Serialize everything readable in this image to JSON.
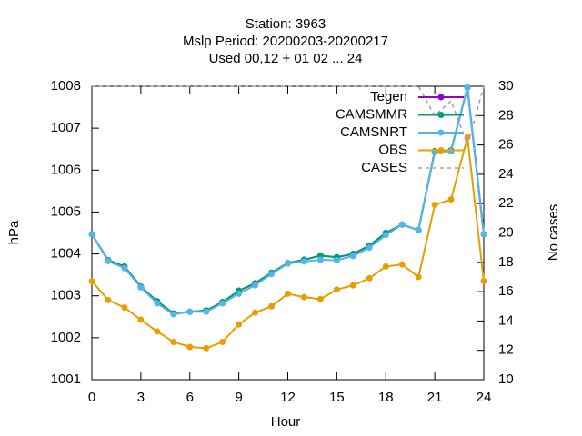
{
  "chart_data": {
    "type": "line",
    "title": [
      "Station:     3963",
      "Mslp   Period: 20200203-20200217",
      "Used  00,12  + 01 02 ... 24"
    ],
    "x_label": "Hour",
    "y_label": "hPa",
    "y2_label": "No cases",
    "x": [
      0,
      1,
      2,
      3,
      4,
      5,
      6,
      7,
      8,
      9,
      10,
      11,
      12,
      13,
      14,
      15,
      16,
      17,
      18,
      19,
      20,
      21,
      22,
      23,
      24
    ],
    "xlim": [
      0,
      24
    ],
    "xticks": [
      0,
      3,
      6,
      9,
      12,
      15,
      18,
      21,
      24
    ],
    "ylim": [
      1001,
      1008
    ],
    "yticks": [
      1001,
      1002,
      1003,
      1004,
      1005,
      1006,
      1007,
      1008
    ],
    "y2lim": [
      10,
      30
    ],
    "y2ticks": [
      10,
      12,
      14,
      16,
      18,
      20,
      22,
      24,
      26,
      28,
      30
    ],
    "legend": "upper right",
    "series": [
      {
        "name": "Tegen",
        "color": "#9400d3",
        "values": [
          1004.47,
          1003.85,
          1003.7,
          1003.22,
          1002.87,
          1002.58,
          1002.62,
          1002.65,
          1002.85,
          1003.12,
          1003.3,
          1003.55,
          1003.78,
          1003.86,
          1003.96,
          1003.92,
          1004.0,
          1004.2,
          1004.5,
          1004.7,
          1004.57,
          1006.45,
          1006.47,
          1007.97,
          1004.47
        ]
      },
      {
        "name": "CAMSMMR",
        "color": "#009e73",
        "values": [
          1004.47,
          1003.85,
          1003.7,
          1003.22,
          1002.87,
          1002.58,
          1002.62,
          1002.65,
          1002.85,
          1003.12,
          1003.3,
          1003.55,
          1003.78,
          1003.86,
          1003.96,
          1003.92,
          1004.0,
          1004.2,
          1004.5,
          1004.7,
          1004.57,
          1006.45,
          1006.47,
          1007.97,
          1004.47
        ]
      },
      {
        "name": "CAMSNRT",
        "color": "#56b4e9",
        "values": [
          1004.47,
          1003.83,
          1003.66,
          1003.2,
          1002.82,
          1002.56,
          1002.62,
          1002.62,
          1002.82,
          1003.05,
          1003.25,
          1003.52,
          1003.77,
          1003.82,
          1003.86,
          1003.85,
          1003.95,
          1004.15,
          1004.45,
          1004.7,
          1004.57,
          1006.43,
          1006.45,
          1007.97,
          1004.47
        ]
      },
      {
        "name": "OBS",
        "color": "#e69f00",
        "values": [
          1003.35,
          1002.9,
          1002.72,
          1002.43,
          1002.15,
          1001.9,
          1001.78,
          1001.75,
          1001.9,
          1002.32,
          1002.6,
          1002.75,
          1003.05,
          1002.97,
          1002.92,
          1003.15,
          1003.25,
          1003.42,
          1003.7,
          1003.75,
          1003.45,
          1005.17,
          1005.3,
          1006.78,
          1003.35
        ]
      },
      {
        "name": "CASES",
        "color": "#a0a0a0",
        "axis": "y2",
        "dashed": true,
        "values": [
          30,
          30,
          30,
          30,
          30,
          30,
          30,
          30,
          30,
          30,
          30,
          30,
          30,
          30,
          30,
          30,
          30,
          30,
          30,
          30,
          30,
          28,
          29,
          26,
          30
        ]
      }
    ]
  }
}
